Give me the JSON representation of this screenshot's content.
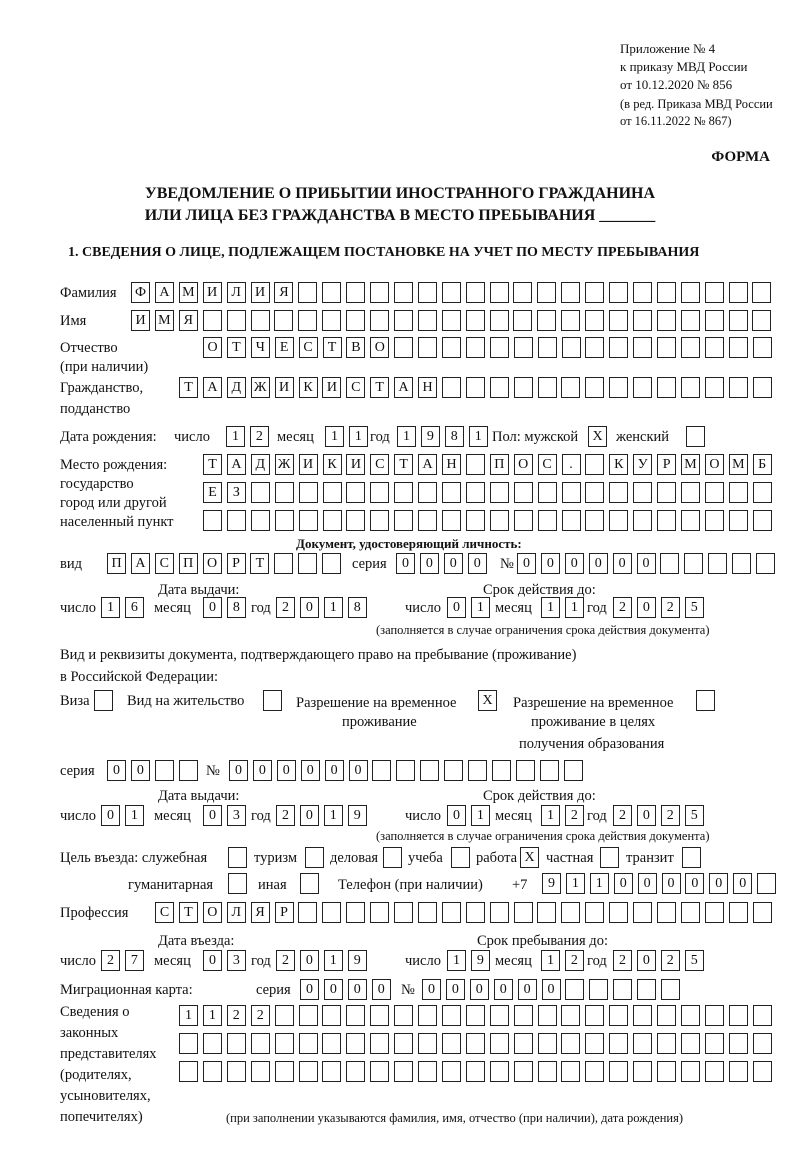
{
  "header": {
    "line1": "Приложение № 4",
    "line2": "к приказу МВД России",
    "line3": "от 10.12.2020 № 856",
    "line4": "(в ред. Приказа МВД России",
    "line5": "от 16.11.2022 № 867)",
    "form": "ФОРМА",
    "title1": "УВЕДОМЛЕНИЕ О ПРИБЫТИИ ИНОСТРАННОГО ГРАЖДАНИНА",
    "title2": "ИЛИ ЛИЦА БЕЗ ГРАЖДАНСТВА В МЕСТО ПРЕБЫВАНИЯ _______",
    "section1": "1. СВЕДЕНИЯ О ЛИЦЕ, ПОДЛЕЖАЩЕМ ПОСТАНОВКЕ НА УЧЕТ ПО МЕСТУ ПРЕБЫВАНИЯ"
  },
  "labels": {
    "surname": "Фамилия",
    "name": "Имя",
    "patronymic": "Отчество",
    "patronymic2": "(при наличии)",
    "citizenship": "Гражданство,",
    "citizenship2": "подданство",
    "dob": "Дата рождения:",
    "day": "число",
    "month": "месяц",
    "year": "год",
    "sex": "Пол: мужской",
    "female": "женский",
    "pob1": "Место рождения:",
    "pob2": "государство",
    "pob3": "город или другой",
    "pob4": "населенный пункт",
    "id_doc": "Документ, удостоверяющий личность:",
    "kind": "вид",
    "series": "серия",
    "number": "№",
    "issue_date": "Дата выдачи:",
    "valid_until": "Срок действия до:",
    "validity_note": "(заполняется в случае ограничения срока действия документа)",
    "right_doc1": "Вид и реквизиты документа, подтверждающего право на пребывание (проживание)",
    "right_doc2": "в Российской Федерации:",
    "visa": "Виза",
    "residence": "Вид на жительство",
    "temp_res1": "Разрешение на временное",
    "temp_res2": "проживание",
    "temp_edu1": "Разрешение на временное",
    "temp_edu2": "проживание в целях",
    "temp_edu3": "получения образования",
    "purpose": "Цель въезда: служебная",
    "tourism": "туризм",
    "business": "деловая",
    "study": "учеба",
    "work": "работа",
    "private": "частная",
    "transit": "транзит",
    "humanitarian": "гуманитарная",
    "other": "иная",
    "phone": "Телефон (при наличии)",
    "phone_prefix": "+7",
    "profession": "Профессия",
    "entry_date": "Дата въезда:",
    "stay_until": "Срок пребывания до:",
    "migration_card": "Миграционная карта:",
    "reps1": "Сведения о",
    "reps2": "законных",
    "reps3": "представителях",
    "reps4": "(родителях,",
    "reps5": "усыновителях,",
    "reps6": "попечителях)",
    "reps_note": "(при заполнении указываются фамилия, имя, отчество (при наличии), дата рождения)"
  },
  "fields": {
    "surname": [
      "Ф",
      "А",
      "М",
      "И",
      "Л",
      "И",
      "Я"
    ],
    "name": [
      "И",
      "М",
      "Я"
    ],
    "patronymic": [
      "О",
      "Т",
      "Ч",
      "Е",
      "С",
      "Т",
      "В",
      "О"
    ],
    "citizenship": [
      "Т",
      "А",
      "Д",
      "Ж",
      "И",
      "К",
      "И",
      "С",
      "Т",
      "А",
      "Н"
    ],
    "dob_day": [
      "1",
      "2"
    ],
    "dob_month": [
      "1",
      "1"
    ],
    "dob_year": [
      "1",
      "9",
      "8",
      "1"
    ],
    "sex_male": [
      "X"
    ],
    "sex_female": [
      ""
    ],
    "pob_row1": [
      "Т",
      "А",
      "Д",
      "Ж",
      "И",
      "К",
      "И",
      "С",
      "Т",
      "А",
      "Н",
      "",
      "П",
      "О",
      "С",
      ".",
      "",
      "К",
      "У",
      "Р",
      "М",
      "О",
      "М",
      "Б"
    ],
    "pob_row2": [
      "Е",
      "З"
    ],
    "pob_row3": [],
    "id_kind": [
      "П",
      "А",
      "С",
      "П",
      "О",
      "Р",
      "Т"
    ],
    "id_series": [
      "0",
      "0",
      "0",
      "0"
    ],
    "id_number": [
      "0",
      "0",
      "0",
      "0",
      "0",
      "0"
    ],
    "id_issue_day": [
      "1",
      "6"
    ],
    "id_issue_month": [
      "0",
      "8"
    ],
    "id_issue_year": [
      "2",
      "0",
      "1",
      "8"
    ],
    "id_valid_day": [
      "0",
      "1"
    ],
    "id_valid_month": [
      "1",
      "1"
    ],
    "id_valid_year": [
      "2",
      "0",
      "2",
      "5"
    ],
    "visa": [
      ""
    ],
    "residence_permit": [
      ""
    ],
    "temp_residence": [
      "X"
    ],
    "temp_residence_edu": [
      ""
    ],
    "rd_series": [
      "0",
      "0"
    ],
    "rd_number": [
      "0",
      "0",
      "0",
      "0",
      "0",
      "0"
    ],
    "rd_issue_day": [
      "0",
      "1"
    ],
    "rd_issue_month": [
      "0",
      "3"
    ],
    "rd_issue_year": [
      "2",
      "0",
      "1",
      "9"
    ],
    "rd_valid_day": [
      "0",
      "1"
    ],
    "rd_valid_month": [
      "1",
      "2"
    ],
    "rd_valid_year": [
      "2",
      "0",
      "2",
      "5"
    ],
    "p_official": [
      ""
    ],
    "p_tourism": [
      ""
    ],
    "p_business": [
      ""
    ],
    "p_study": [
      ""
    ],
    "p_work": [
      "X"
    ],
    "p_private": [
      ""
    ],
    "p_transit": [
      ""
    ],
    "p_humanitarian": [
      ""
    ],
    "p_other": [
      ""
    ],
    "phone": [
      "9",
      "1",
      "1",
      "0",
      "0",
      "0",
      "0",
      "0",
      "0"
    ],
    "profession": [
      "С",
      "Т",
      "О",
      "Л",
      "Я",
      "Р"
    ],
    "entry_day": [
      "2",
      "7"
    ],
    "entry_month": [
      "0",
      "3"
    ],
    "entry_year": [
      "2",
      "0",
      "1",
      "9"
    ],
    "stay_day": [
      "1",
      "9"
    ],
    "stay_month": [
      "1",
      "2"
    ],
    "stay_year": [
      "2",
      "0",
      "2",
      "5"
    ],
    "mc_series": [
      "0",
      "0",
      "0",
      "0"
    ],
    "mc_number": [
      "0",
      "0",
      "0",
      "0",
      "0",
      "0"
    ],
    "reps_row1": [
      "1",
      "1",
      "2",
      "2"
    ],
    "reps_row2": [],
    "reps_row3": []
  }
}
